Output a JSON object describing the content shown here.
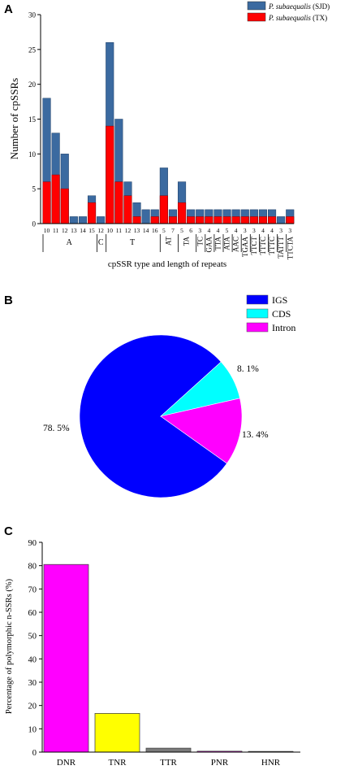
{
  "panels": {
    "a": "A",
    "b": "B",
    "c": "C"
  },
  "chart_data": [
    {
      "type": "bar",
      "stacked": true,
      "ylabel": "Number of cpSSRs",
      "xlabel": "cpSSR type and length of repeats",
      "ylim": [
        0,
        30
      ],
      "yticks": [
        0,
        5,
        10,
        15,
        20,
        25,
        30
      ],
      "categories": [
        "10",
        "11",
        "12",
        "13",
        "14",
        "15",
        "12",
        "10",
        "11",
        "12",
        "13",
        "14",
        "16",
        "5",
        "7",
        "5",
        "6",
        "3",
        "4",
        "4",
        "5",
        "4",
        "3",
        "3",
        "4",
        "4",
        "3",
        "3"
      ],
      "groups": [
        {
          "label": "A",
          "start": 0,
          "end": 5
        },
        {
          "label": "C",
          "start": 6,
          "end": 6
        },
        {
          "label": "T",
          "start": 7,
          "end": 12
        },
        {
          "label": "AT",
          "start": 13,
          "end": 14
        },
        {
          "label": "TA",
          "start": 15,
          "end": 16
        },
        {
          "label": "TC",
          "start": 17,
          "end": 17
        },
        {
          "label": "GAA",
          "start": 18,
          "end": 18
        },
        {
          "label": "TTA",
          "start": 19,
          "end": 19
        },
        {
          "label": "ATA",
          "start": 20,
          "end": 20
        },
        {
          "label": "AAC",
          "start": 21,
          "end": 21
        },
        {
          "label": "TGAA",
          "start": 22,
          "end": 22
        },
        {
          "label": "TTCT",
          "start": 23,
          "end": 23
        },
        {
          "label": "TTTC",
          "start": 24,
          "end": 24
        },
        {
          "label": "TTTC",
          "start": 25,
          "end": 25
        },
        {
          "label": "TATTT",
          "start": 26,
          "end": 26
        },
        {
          "label": "TTCTA",
          "start": 27,
          "end": 27
        }
      ],
      "series": [
        {
          "name": "P. subaequalis (SJD)",
          "color": "#3b6aa0",
          "total": [
            18,
            13,
            10,
            1,
            1,
            4,
            1,
            26,
            15,
            6,
            3,
            2,
            2,
            8,
            2,
            6,
            2,
            2,
            2,
            2,
            2,
            2,
            2,
            2,
            2,
            2,
            1,
            2
          ]
        },
        {
          "name": "P. subaequalis (TX)",
          "color": "#ff0000",
          "values": [
            6,
            7,
            5,
            0,
            0,
            3,
            0,
            14,
            6,
            4,
            1,
            0,
            1,
            4,
            1,
            3,
            1,
            1,
            1,
            1,
            1,
            1,
            1,
            1,
            1,
            1,
            0,
            1
          ]
        }
      ]
    },
    {
      "type": "pie",
      "legend": [
        "IGS",
        "CDS",
        "Intron"
      ],
      "values": [
        78.5,
        8.1,
        13.4
      ],
      "labels": [
        "78. 5%",
        "8. 1%",
        "13. 4%"
      ],
      "colors": [
        "#0000ff",
        "#00ffff",
        "#ff00ff"
      ]
    },
    {
      "type": "bar",
      "categories": [
        "DNR",
        "TNR",
        "TTR",
        "PNR",
        "HNR"
      ],
      "values": [
        80.5,
        16.6,
        1.7,
        0.4,
        0.3
      ],
      "colors": [
        "#ff00ff",
        "#ffff00",
        "#7a7a7a",
        "#ff00ff",
        "#e0c080"
      ],
      "ylabel": "Percentage of polymorphic n-SSRs (%)",
      "ylim": [
        0,
        90
      ],
      "yticks": [
        0,
        10,
        20,
        30,
        40,
        50,
        60,
        70,
        80,
        90
      ]
    }
  ]
}
